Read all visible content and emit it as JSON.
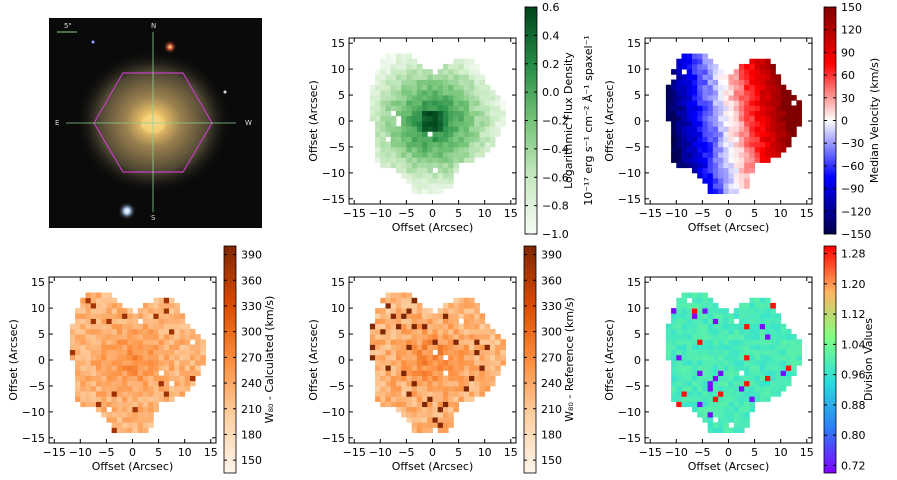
{
  "chart_data": [
    {
      "type": "image",
      "title": "",
      "compass": {
        "north": "N",
        "east": "E",
        "south": "S",
        "west": "W",
        "scale_bar": "5\""
      },
      "colors": {
        "bg": "#0a0a0a",
        "hexagon": "#c23fbf",
        "crosshair": "#8fd08f",
        "galaxy_core": "#f6d27a",
        "galaxy_disk": "#7a6c4a"
      }
    },
    {
      "type": "heatmap",
      "xlabel": "Offset (Arcsec)",
      "ylabel": "Offset (Arcsec)",
      "xlim": [
        -16,
        16
      ],
      "ylim": [
        -16,
        16
      ],
      "xticks": [
        "−15",
        "−10",
        "−5",
        "0",
        "5",
        "10",
        "15"
      ],
      "yticks": [
        "15",
        "10",
        "5",
        "0",
        "−5",
        "−10",
        "−15"
      ],
      "colorbar_ticks": [
        "0.6",
        "0.4",
        "0.2",
        "0.0",
        "−0.2",
        "−0.4",
        "−0.6",
        "−0.8",
        "−1.0"
      ],
      "colorbar_range": [
        -1.0,
        0.6
      ],
      "colorbar_label_line1": "Logarithmic Flux Density",
      "colorbar_label_line2": "10⁻¹⁷ erg s⁻¹ cm⁻² Å⁻¹ spaxel⁻¹",
      "colormap": "Greens",
      "field": "flux"
    },
    {
      "type": "heatmap",
      "xlabel": "Offset (Arcsec)",
      "ylabel": "Offset (Arcsec)",
      "xlim": [
        -16,
        16
      ],
      "ylim": [
        -16,
        16
      ],
      "xticks": [
        "−15",
        "−10",
        "−5",
        "0",
        "5",
        "10",
        "15"
      ],
      "yticks": [
        "15",
        "10",
        "5",
        "0",
        "−5",
        "−10",
        "−15"
      ],
      "colorbar_ticks": [
        "150",
        "120",
        "90",
        "60",
        "30",
        "0",
        "−30",
        "−60",
        "−90",
        "−120",
        "−150"
      ],
      "colorbar_range": [
        -150,
        150
      ],
      "colorbar_label": "Median Velocity (km/s)",
      "colormap": "seismic",
      "field": "velocity"
    },
    {
      "type": "heatmap",
      "xlabel": "Offset (Arcsec)",
      "ylabel": "Offset (Arcsec)",
      "xlim": [
        -16,
        16
      ],
      "ylim": [
        -16,
        16
      ],
      "xticks": [
        "−15",
        "−10",
        "−5",
        "0",
        "5",
        "10",
        "15"
      ],
      "yticks": [
        "15",
        "10",
        "5",
        "0",
        "−5",
        "−10",
        "−15"
      ],
      "colorbar_ticks": [
        "390",
        "360",
        "330",
        "300",
        "270",
        "240",
        "210",
        "180",
        "150"
      ],
      "colorbar_range": [
        135,
        400
      ],
      "colorbar_label": "W₈₀ - Calculated (km/s)",
      "colormap": "Oranges",
      "field": "w80calc"
    },
    {
      "type": "heatmap",
      "xlabel": "Offset (Arcsec)",
      "ylabel": "Offset (Arcsec)",
      "xlim": [
        -16,
        16
      ],
      "ylim": [
        -16,
        16
      ],
      "xticks": [
        "−15",
        "−10",
        "−5",
        "0",
        "5",
        "10",
        "15"
      ],
      "yticks": [
        "15",
        "10",
        "5",
        "0",
        "−5",
        "−10",
        "−15"
      ],
      "colorbar_ticks": [
        "390",
        "360",
        "330",
        "300",
        "270",
        "240",
        "210",
        "180",
        "150"
      ],
      "colorbar_range": [
        135,
        400
      ],
      "colorbar_label": "W₈₀ - Reference (km/s)",
      "colormap": "Oranges",
      "field": "w80ref"
    },
    {
      "type": "heatmap",
      "xlabel": "Offset (Arcsec)",
      "ylabel": "Offset (Arcsec)",
      "xlim": [
        -16,
        16
      ],
      "ylim": [
        -16,
        16
      ],
      "xticks": [
        "−15",
        "−10",
        "−5",
        "0",
        "5",
        "10",
        "15"
      ],
      "yticks": [
        "15",
        "10",
        "5",
        "0",
        "−5",
        "−10",
        "−15"
      ],
      "colorbar_ticks": [
        "1.28",
        "1.20",
        "1.12",
        "1.04",
        "0.96",
        "0.88",
        "0.80",
        "0.72"
      ],
      "colorbar_range": [
        0.7,
        1.3
      ],
      "colorbar_label": "Division Values",
      "colormap": "rainbow",
      "field": "division"
    }
  ]
}
